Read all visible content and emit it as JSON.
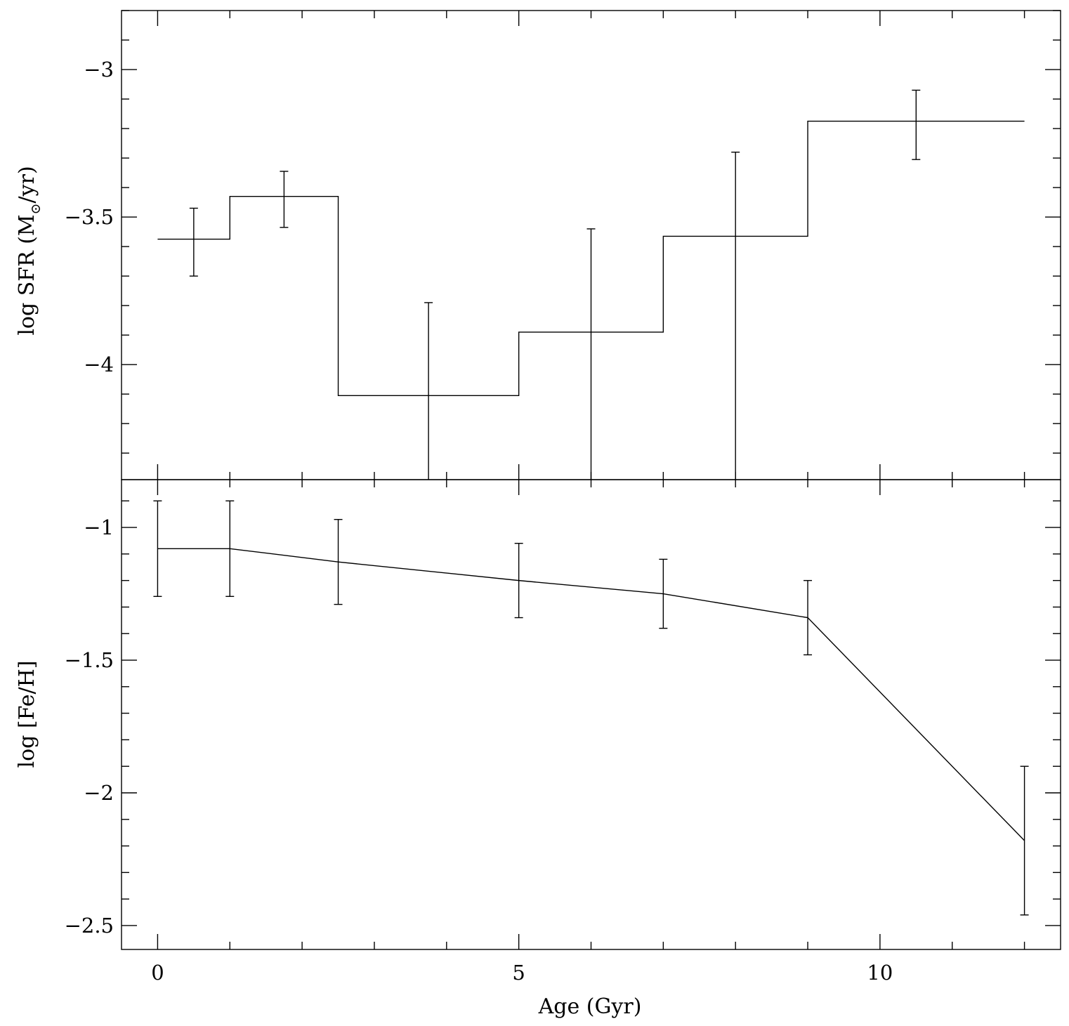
{
  "chart_data": [
    {
      "type": "step",
      "panel": "top",
      "ylabel_main": "log SFR (M",
      "ylabel_sub": "⊙",
      "ylabel_tail": "/yr)",
      "xlim": [
        -0.5,
        12.5
      ],
      "ylim": [
        -4.39,
        -2.8
      ],
      "yticks_labeled": [
        -3,
        -3.5,
        -4
      ],
      "ytick_labels": [
        "−3",
        "−3.5",
        "−4"
      ],
      "yminor_step": 0.1,
      "steps": [
        {
          "x0": 0,
          "x1": 1,
          "y": -3.575
        },
        {
          "x0": 1,
          "x1": 2.5,
          "y": -3.43
        },
        {
          "x0": 2.5,
          "x1": 5,
          "y": -4.105
        },
        {
          "x0": 5,
          "x1": 7,
          "y": -3.89
        },
        {
          "x0": 7,
          "x1": 9,
          "y": -3.565
        },
        {
          "x0": 9,
          "x1": 12,
          "y": -3.175
        }
      ],
      "errorbars": [
        {
          "x": 0.5,
          "ylo": -3.7,
          "yhi": -3.47
        },
        {
          "x": 1.75,
          "ylo": -3.535,
          "yhi": -3.345
        },
        {
          "x": 3.75,
          "ylo": -4.39,
          "yhi": -3.79
        },
        {
          "x": 6,
          "ylo": -4.39,
          "yhi": -3.54
        },
        {
          "x": 8,
          "ylo": -4.39,
          "yhi": -3.28
        },
        {
          "x": 10.5,
          "ylo": -3.305,
          "yhi": -3.07
        }
      ]
    },
    {
      "type": "line",
      "panel": "bottom",
      "xlabel": "Age (Gyr)",
      "ylabel": "log [Fe/H]",
      "xlim": [
        -0.5,
        12.5
      ],
      "ylim": [
        -2.59,
        -0.82
      ],
      "xticks_labeled": [
        0,
        5,
        10
      ],
      "xtick_labels": [
        "0",
        "5",
        "10"
      ],
      "xminor_step": 1,
      "yticks_labeled": [
        -1,
        -1.5,
        -2,
        -2.5
      ],
      "ytick_labels": [
        "−1",
        "−1.5",
        "−2",
        "−2.5"
      ],
      "yminor_step": 0.1,
      "points": [
        {
          "x": 0,
          "y": -1.08,
          "ylo": -1.26,
          "yhi": -0.9
        },
        {
          "x": 1,
          "y": -1.08,
          "ylo": -1.26,
          "yhi": -0.9
        },
        {
          "x": 2.5,
          "y": -1.13,
          "ylo": -1.29,
          "yhi": -0.97
        },
        {
          "x": 5,
          "y": -1.2,
          "ylo": -1.34,
          "yhi": -1.06
        },
        {
          "x": 7,
          "y": -1.25,
          "ylo": -1.38,
          "yhi": -1.12
        },
        {
          "x": 9,
          "y": -1.34,
          "ylo": -1.48,
          "yhi": -1.2
        },
        {
          "x": 12,
          "y": -2.18,
          "ylo": -2.46,
          "yhi": -1.9
        }
      ]
    }
  ]
}
